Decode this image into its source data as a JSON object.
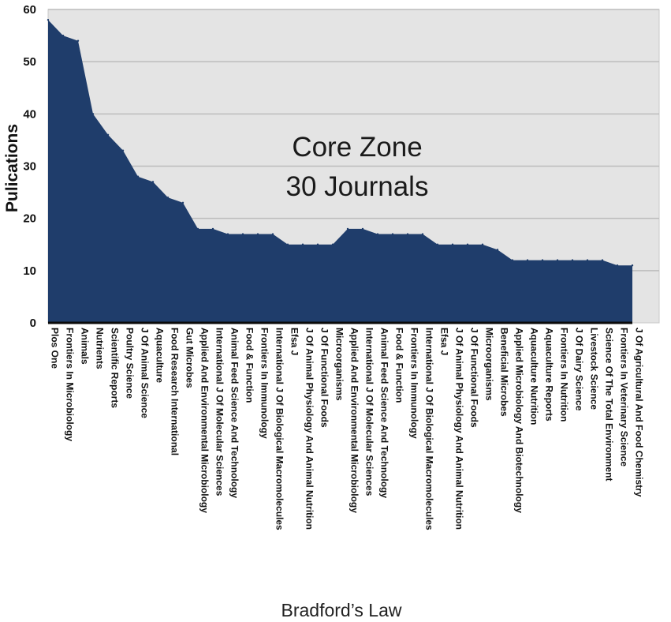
{
  "chart_data": {
    "type": "area",
    "title": "",
    "xlabel": "Bradford’s Law",
    "ylabel": "Pulications",
    "ylim": [
      0,
      60
    ],
    "yticks": [
      0,
      10,
      20,
      30,
      40,
      50,
      60
    ],
    "grid": true,
    "annotation": {
      "line1": "Core Zone",
      "line2": "30 Journals"
    },
    "colors": {
      "area": "#1f3d6b",
      "plot_bg": "#e4e4e4",
      "grid": "#bcbcbc",
      "baseline": "#0a0a0a"
    },
    "categories": [
      "Plos One",
      "Frontiers In Microbiology",
      "Animals",
      "Nutrients",
      "Scientific Reports",
      "Poultry Science",
      "J Of Animal Science",
      "Aquaculture",
      "Food Research International",
      "Gut Microbes",
      "Applied And Environmental Microbiology",
      "International J Of Molecular Sciences",
      "Animal Feed Science And Technology",
      "Food & Function",
      "Frontiers In Immunology",
      "International J Of Biological Macromolecules",
      "Efsa J",
      "J Of Animal Physiology And Animal Nutrition",
      "J Of Functional Foods",
      "Microorganisms",
      "Applied And Environmental Microbiology",
      "International J Of Molecular Sciences",
      "Animal Feed Science And Technology",
      "Food & Function",
      "Frontiers In Immunology",
      "International J Of Biological Macromolecules",
      "Efsa J",
      "J Of Animal Physiology And Animal Nutrition",
      "J Of Functional Foods",
      "Microorganisms",
      "Beneficial Microbes",
      "Applied Microbiology And Biotechnology",
      "Aquaculture Nutrition",
      "Aquaculture Reports",
      "Frontiers In Nutrition",
      "J Of Dairy Science",
      "Livestock Science",
      "Science Of The Total Environment",
      "Frontiers In Veterinary Science",
      "J Of Agricultural And Food Chemistry"
    ],
    "values": [
      58,
      55,
      54,
      40,
      36,
      33,
      28,
      27,
      24,
      23,
      18,
      18,
      17,
      17,
      17,
      17,
      15,
      15,
      15,
      15,
      18,
      18,
      17,
      17,
      17,
      17,
      15,
      15,
      15,
      15,
      14,
      12,
      12,
      12,
      12,
      12,
      12,
      12,
      11,
      11
    ]
  }
}
